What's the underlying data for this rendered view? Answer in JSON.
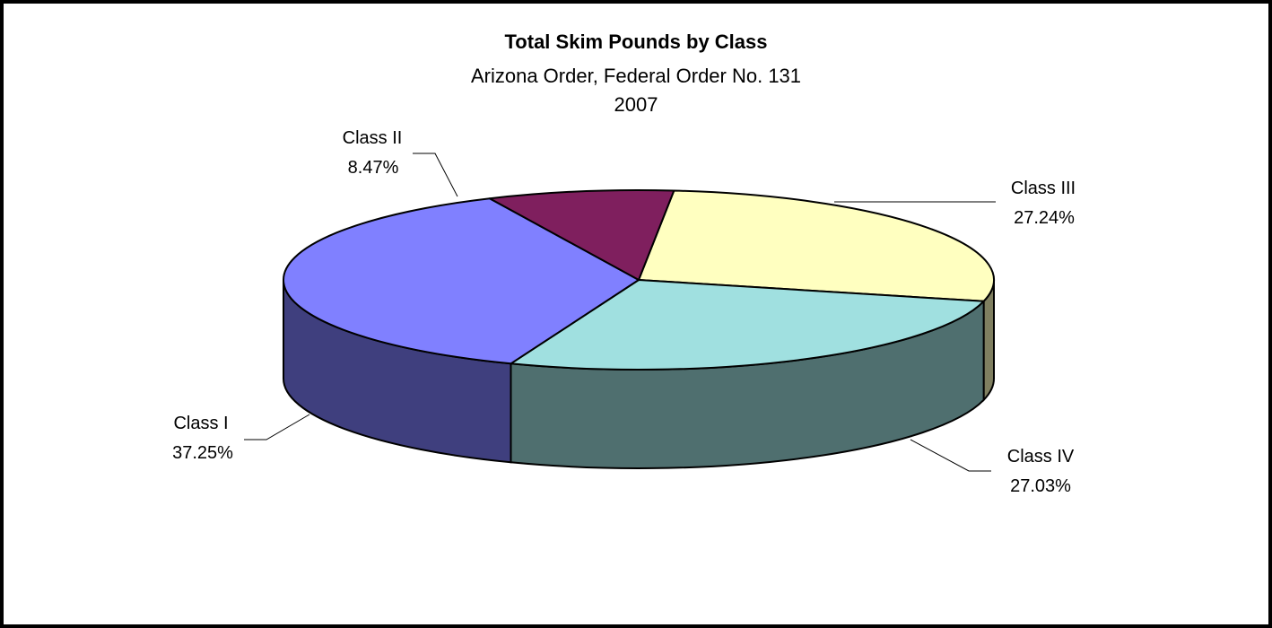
{
  "chart_data": {
    "type": "pie",
    "title": "Total Skim Pounds by Class",
    "subtitle": "Arizona Order, Federal Order No. 131",
    "subtitle2": "2007",
    "slices": [
      {
        "label": "Class I",
        "pct_label": "37.25%",
        "value": 37.25,
        "top_color": "#8080FF",
        "side_color": "#3F3F7E"
      },
      {
        "label": "Class II",
        "pct_label": "8.47%",
        "value": 8.47,
        "top_color": "#7F1F5E",
        "side_color": "#3F0F2F"
      },
      {
        "label": "Class III",
        "pct_label": "27.24%",
        "value": 27.24,
        "top_color": "#FFFFC0",
        "side_color": "#7F7F60"
      },
      {
        "label": "Class IV",
        "pct_label": "27.03%",
        "value": 27.03,
        "top_color": "#A0E0E0",
        "side_color": "#4F6F6F"
      }
    ]
  }
}
